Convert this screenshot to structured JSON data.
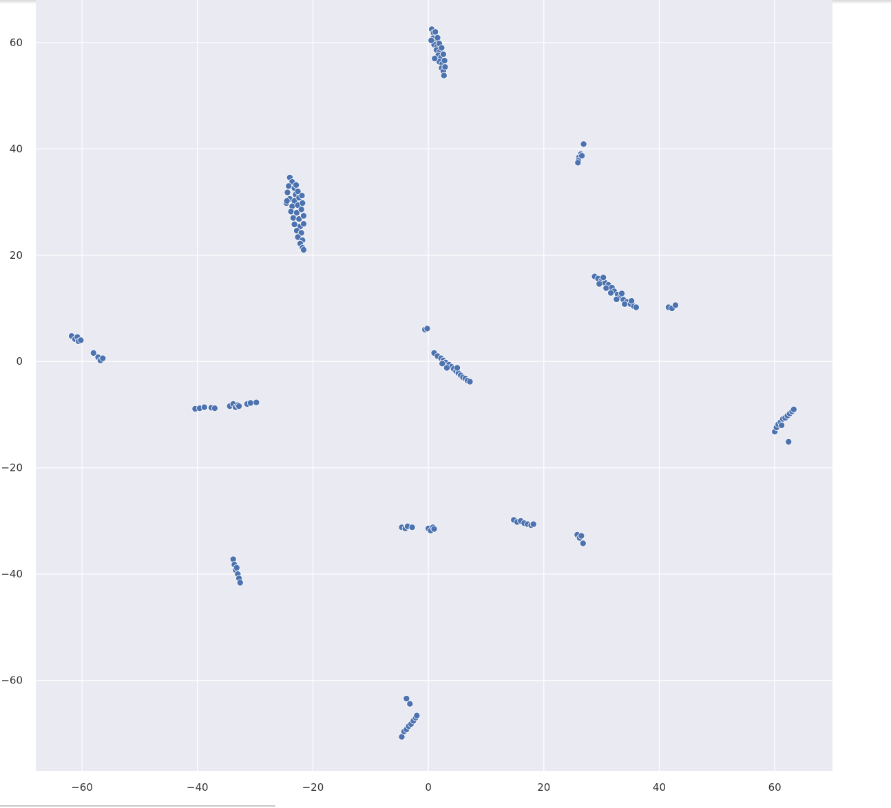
{
  "chart_data": {
    "type": "scatter",
    "title": "",
    "xlabel": "",
    "ylabel": "",
    "xlim": [
      -68,
      70
    ],
    "ylim": [
      -77,
      68
    ],
    "xticks": [
      -60,
      -40,
      -20,
      0,
      20,
      40,
      60
    ],
    "yticks": [
      -60,
      -40,
      -20,
      0,
      20,
      40,
      60
    ],
    "xtick_labels": [
      "−60",
      "−40",
      "−20",
      "0",
      "20",
      "40",
      "60"
    ],
    "ytick_labels": [
      "−60",
      "−40",
      "−20",
      "0",
      "20",
      "40",
      "60"
    ],
    "grid": true,
    "background_color": "#eaeaf2",
    "point_color": "#4c72b0",
    "clusters": [
      {
        "points": [
          [
            0.6,
            62.5
          ],
          [
            0.9,
            61.8
          ],
          [
            1.2,
            62.0
          ],
          [
            0.8,
            60.8
          ],
          [
            1.3,
            60.2
          ],
          [
            1.6,
            60.9
          ],
          [
            1.0,
            59.6
          ],
          [
            1.5,
            59.2
          ],
          [
            1.9,
            59.8
          ],
          [
            1.4,
            58.6
          ],
          [
            2.0,
            58.3
          ],
          [
            2.3,
            59.0
          ],
          [
            1.7,
            57.6
          ],
          [
            2.2,
            57.2
          ],
          [
            2.6,
            57.8
          ],
          [
            1.9,
            56.4
          ],
          [
            2.4,
            56.0
          ],
          [
            2.8,
            56.6
          ],
          [
            2.3,
            55.2
          ],
          [
            2.6,
            54.6
          ],
          [
            2.9,
            55.4
          ],
          [
            2.7,
            53.8
          ],
          [
            1.1,
            57.0
          ],
          [
            0.5,
            60.4
          ]
        ]
      },
      {
        "points": [
          [
            26.9,
            40.9
          ],
          [
            26.4,
            39.0
          ],
          [
            26.1,
            38.4
          ],
          [
            26.0,
            37.8
          ],
          [
            25.9,
            37.4
          ],
          [
            26.6,
            38.7
          ]
        ]
      },
      {
        "points": [
          [
            -24.0,
            34.6
          ],
          [
            -23.6,
            33.8
          ],
          [
            -24.2,
            33.0
          ],
          [
            -23.2,
            32.6
          ],
          [
            -24.4,
            31.8
          ],
          [
            -23.0,
            31.4
          ],
          [
            -22.6,
            32.0
          ],
          [
            -24.0,
            30.6
          ],
          [
            -23.2,
            30.2
          ],
          [
            -22.4,
            30.8
          ],
          [
            -24.6,
            29.8
          ],
          [
            -23.6,
            29.2
          ],
          [
            -22.6,
            29.4
          ],
          [
            -21.8,
            29.8
          ],
          [
            -23.8,
            28.2
          ],
          [
            -22.8,
            28.0
          ],
          [
            -22.0,
            28.6
          ],
          [
            -23.4,
            27.0
          ],
          [
            -22.4,
            26.8
          ],
          [
            -21.6,
            27.4
          ],
          [
            -23.2,
            25.8
          ],
          [
            -22.2,
            25.4
          ],
          [
            -21.6,
            25.9
          ],
          [
            -22.8,
            24.6
          ],
          [
            -22.0,
            24.2
          ],
          [
            -22.6,
            23.4
          ],
          [
            -21.8,
            22.8
          ],
          [
            -22.2,
            22.2
          ],
          [
            -21.8,
            21.4
          ],
          [
            -21.6,
            21.0
          ],
          [
            -24.5,
            30.2
          ],
          [
            -22.9,
            33.2
          ],
          [
            -21.9,
            31.2
          ]
        ]
      },
      {
        "points": [
          [
            28.8,
            16.0
          ],
          [
            29.4,
            15.6
          ],
          [
            30.0,
            15.2
          ],
          [
            30.6,
            14.8
          ],
          [
            29.6,
            14.6
          ],
          [
            31.2,
            14.4
          ],
          [
            30.8,
            13.8
          ],
          [
            31.8,
            13.9
          ],
          [
            32.2,
            13.2
          ],
          [
            31.6,
            12.9
          ],
          [
            32.8,
            12.6
          ],
          [
            33.2,
            12.0
          ],
          [
            32.6,
            11.7
          ],
          [
            33.8,
            11.6
          ],
          [
            34.4,
            11.2
          ],
          [
            34.0,
            10.8
          ],
          [
            35.0,
            10.8
          ],
          [
            35.6,
            10.4
          ],
          [
            36.0,
            10.2
          ],
          [
            30.3,
            15.8
          ],
          [
            33.5,
            12.8
          ],
          [
            35.2,
            11.4
          ]
        ]
      },
      {
        "points": [
          [
            41.6,
            10.2
          ],
          [
            42.2,
            10.0
          ],
          [
            42.8,
            10.6
          ]
        ]
      },
      {
        "points": [
          [
            -0.6,
            6.0
          ],
          [
            -0.2,
            6.2
          ]
        ]
      },
      {
        "points": [
          [
            1.0,
            1.6
          ],
          [
            1.6,
            1.0
          ],
          [
            2.2,
            0.6
          ],
          [
            2.6,
            0.2
          ],
          [
            3.0,
            -0.2
          ],
          [
            3.6,
            -0.6
          ],
          [
            4.0,
            -1.0
          ],
          [
            4.4,
            -1.4
          ],
          [
            3.2,
            -1.2
          ],
          [
            4.8,
            -1.8
          ],
          [
            5.2,
            -2.2
          ],
          [
            5.6,
            -2.6
          ],
          [
            6.0,
            -3.0
          ],
          [
            6.4,
            -3.2
          ],
          [
            6.8,
            -3.6
          ],
          [
            7.2,
            -3.8
          ],
          [
            2.4,
            -0.4
          ],
          [
            5.0,
            -1.2
          ]
        ]
      },
      {
        "points": [
          [
            -61.8,
            4.8
          ],
          [
            -61.2,
            4.2
          ],
          [
            -60.8,
            4.6
          ],
          [
            -60.6,
            3.8
          ],
          [
            -60.2,
            4.0
          ]
        ]
      },
      {
        "points": [
          [
            -58.0,
            1.6
          ]
        ]
      },
      {
        "points": [
          [
            -57.2,
            0.8
          ],
          [
            -56.8,
            0.2
          ],
          [
            -56.4,
            0.6
          ]
        ]
      },
      {
        "points": [
          [
            -40.4,
            -8.9
          ],
          [
            -39.6,
            -8.8
          ],
          [
            -38.8,
            -8.6
          ],
          [
            -37.6,
            -8.7
          ],
          [
            -37.0,
            -8.8
          ]
        ]
      },
      {
        "points": [
          [
            -34.4,
            -8.4
          ],
          [
            -33.8,
            -8.0
          ],
          [
            -33.4,
            -8.6
          ],
          [
            -33.0,
            -8.2
          ],
          [
            -32.8,
            -8.4
          ]
        ]
      },
      {
        "points": [
          [
            -31.4,
            -8.0
          ],
          [
            -30.8,
            -7.8
          ],
          [
            -29.8,
            -7.7
          ]
        ]
      },
      {
        "points": [
          [
            60.0,
            -13.2
          ],
          [
            60.3,
            -12.4
          ],
          [
            60.6,
            -11.8
          ],
          [
            61.0,
            -11.4
          ],
          [
            61.4,
            -10.8
          ],
          [
            61.8,
            -10.6
          ],
          [
            62.2,
            -10.2
          ],
          [
            62.6,
            -9.8
          ],
          [
            63.0,
            -9.4
          ],
          [
            63.3,
            -9.0
          ],
          [
            61.2,
            -12.0
          ]
        ]
      },
      {
        "points": [
          [
            62.4,
            -15.1
          ]
        ]
      },
      {
        "points": [
          [
            -4.6,
            -31.2
          ],
          [
            -4.0,
            -31.4
          ],
          [
            -3.6,
            -31.0
          ]
        ]
      },
      {
        "points": [
          [
            -2.8,
            -31.2
          ]
        ]
      },
      {
        "points": [
          [
            0.0,
            -31.4
          ],
          [
            0.4,
            -31.8
          ],
          [
            0.8,
            -31.2
          ],
          [
            1.0,
            -31.5
          ]
        ]
      },
      {
        "points": [
          [
            14.8,
            -29.8
          ],
          [
            15.4,
            -30.2
          ],
          [
            16.0,
            -30.0
          ],
          [
            16.6,
            -30.4
          ],
          [
            17.2,
            -30.6
          ],
          [
            17.8,
            -30.8
          ],
          [
            18.2,
            -30.6
          ]
        ]
      },
      {
        "points": [
          [
            25.8,
            -32.6
          ],
          [
            26.2,
            -33.2
          ],
          [
            26.5,
            -32.8
          ],
          [
            26.8,
            -34.2
          ]
        ]
      },
      {
        "points": [
          [
            -33.8,
            -37.2
          ],
          [
            -33.6,
            -38.2
          ],
          [
            -33.4,
            -39.2
          ],
          [
            -33.0,
            -40.0
          ],
          [
            -32.8,
            -40.8
          ],
          [
            -32.6,
            -41.6
          ],
          [
            -33.2,
            -38.8
          ]
        ]
      },
      {
        "points": [
          [
            -3.8,
            -63.4
          ],
          [
            -3.2,
            -64.4
          ]
        ]
      },
      {
        "points": [
          [
            -4.6,
            -70.6
          ],
          [
            -4.2,
            -69.6
          ],
          [
            -3.8,
            -69.2
          ],
          [
            -3.4,
            -68.6
          ],
          [
            -3.0,
            -68.2
          ],
          [
            -2.6,
            -67.6
          ],
          [
            -2.2,
            -67.0
          ],
          [
            -2.0,
            -66.6
          ]
        ]
      }
    ]
  }
}
